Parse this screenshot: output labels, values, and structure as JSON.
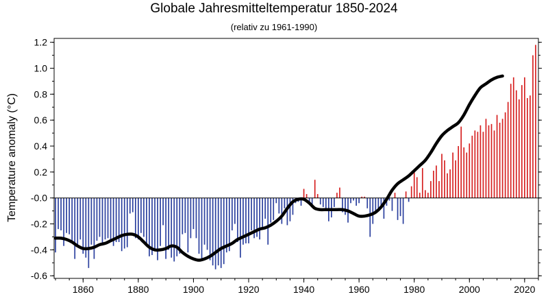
{
  "chart_data": {
    "type": "bar",
    "title": "Globale Jahresmitteltemperatur 1850-2024",
    "subtitle": "(relativ zu 1961-1990)",
    "xlabel": "",
    "ylabel": "Temperature anomaly (°C)",
    "xlim": [
      1849.5,
      2025
    ],
    "ylim": [
      -0.62,
      1.23
    ],
    "x_ticks": [
      1860,
      1880,
      1900,
      1920,
      1940,
      1960,
      1980,
      2000,
      2020
    ],
    "x_tick_labels": [
      "1860",
      "1880",
      "1900",
      "1920",
      "1940",
      "1960",
      "1980",
      "2000",
      "2020"
    ],
    "y_ticks": [
      1.2,
      1.0,
      0.8,
      0.6,
      0.4,
      0.2,
      0.0,
      -0.2,
      -0.4,
      -0.6
    ],
    "y_tick_labels": [
      "1.2",
      "1.0",
      "0.8",
      "0.6",
      "0.4",
      "0.2",
      "-0.0",
      "-0.2",
      "-0.4",
      "-0.6"
    ],
    "grid": false,
    "positive_color": "#d62020",
    "negative_color": "#2a3f9e",
    "smooth_color": "#000000",
    "years_start": 1850,
    "values": [
      -0.42,
      -0.24,
      -0.25,
      -0.37,
      -0.27,
      -0.28,
      -0.35,
      -0.47,
      -0.38,
      -0.32,
      -0.43,
      -0.46,
      -0.54,
      -0.36,
      -0.47,
      -0.33,
      -0.3,
      -0.35,
      -0.32,
      -0.31,
      -0.33,
      -0.37,
      -0.34,
      -0.34,
      -0.41,
      -0.39,
      -0.38,
      -0.12,
      -0.11,
      -0.31,
      -0.32,
      -0.27,
      -0.3,
      -0.36,
      -0.45,
      -0.44,
      -0.4,
      -0.48,
      -0.37,
      -0.21,
      -0.47,
      -0.4,
      -0.46,
      -0.49,
      -0.45,
      -0.43,
      -0.28,
      -0.27,
      -0.42,
      -0.31,
      -0.24,
      -0.31,
      -0.43,
      -0.48,
      -0.36,
      -0.4,
      -0.48,
      -0.52,
      -0.55,
      -0.52,
      -0.54,
      -0.51,
      -0.42,
      -0.41,
      -0.25,
      -0.2,
      -0.34,
      -0.46,
      -0.36,
      -0.35,
      -0.35,
      -0.25,
      -0.31,
      -0.3,
      -0.32,
      -0.24,
      -0.16,
      -0.36,
      -0.19,
      -0.17,
      -0.04,
      -0.12,
      -0.2,
      -0.08,
      -0.21,
      -0.18,
      -0.13,
      -0.04,
      -0.03,
      -0.06,
      0.07,
      0.03,
      -0.04,
      -0.07,
      0.14,
      0.03,
      -0.05,
      -0.07,
      -0.08,
      -0.18,
      -0.15,
      -0.07,
      0.04,
      0.08,
      -0.11,
      -0.13,
      -0.19,
      -0.04,
      -0.02,
      -0.06,
      -0.04,
      0.01,
      0.01,
      -0.08,
      -0.3,
      -0.2,
      -0.1,
      -0.08,
      -0.08,
      -0.16,
      -0.06,
      -0.02,
      -0.1,
      0.04,
      -0.17,
      -0.14,
      -0.2,
      0.05,
      -0.03,
      0.09,
      0.2,
      0.16,
      0.04,
      0.23,
      0.06,
      0.04,
      0.13,
      0.21,
      0.25,
      0.13,
      0.34,
      0.29,
      0.19,
      0.22,
      0.35,
      0.29,
      0.4,
      0.55,
      0.39,
      0.35,
      0.42,
      0.48,
      0.52,
      0.51,
      0.56,
      0.51,
      0.61,
      0.56,
      0.57,
      0.52,
      0.64,
      0.58,
      0.61,
      0.66,
      0.74,
      0.88,
      0.93,
      0.83,
      0.76,
      0.87,
      0.93,
      0.77,
      0.79,
      1.1,
      1.18
    ],
    "smooth": [
      -0.31,
      -0.31,
      -0.32,
      -0.34,
      -0.37,
      -0.39,
      -0.39,
      -0.38,
      -0.36,
      -0.35,
      -0.33,
      -0.31,
      -0.29,
      -0.28,
      -0.28,
      -0.3,
      -0.34,
      -0.38,
      -0.4,
      -0.4,
      -0.39,
      -0.37,
      -0.38,
      -0.42,
      -0.45,
      -0.47,
      -0.48,
      -0.47,
      -0.45,
      -0.42,
      -0.39,
      -0.37,
      -0.35,
      -0.32,
      -0.3,
      -0.28,
      -0.26,
      -0.24,
      -0.23,
      -0.21,
      -0.18,
      -0.14,
      -0.08,
      -0.03,
      -0.01,
      -0.01,
      -0.04,
      -0.08,
      -0.09,
      -0.09,
      -0.09,
      -0.09,
      -0.09,
      -0.1,
      -0.12,
      -0.14,
      -0.14,
      -0.13,
      -0.11,
      -0.07,
      -0.01,
      0.06,
      0.11,
      0.14,
      0.17,
      0.21,
      0.25,
      0.29,
      0.35,
      0.42,
      0.48,
      0.52,
      0.55,
      0.58,
      0.64,
      0.72,
      0.79,
      0.85,
      0.88,
      0.91,
      0.93,
      0.94
    ]
  }
}
